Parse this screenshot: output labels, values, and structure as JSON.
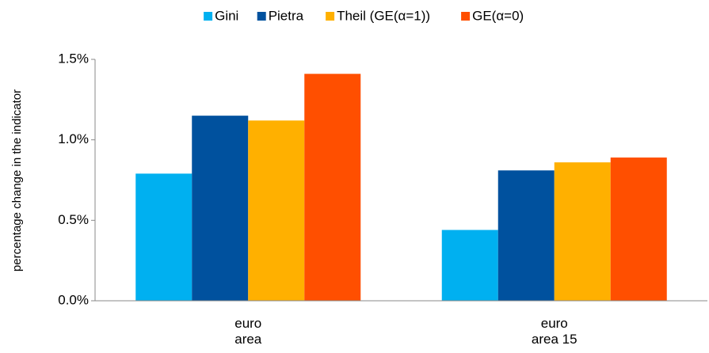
{
  "chart_data": {
    "type": "bar",
    "y_label": "percentage change in the indicator",
    "categories": [
      "euro area",
      "euro area 15"
    ],
    "series": [
      {
        "name": "Gini",
        "color": "#00b0f0",
        "values": [
          0.79,
          0.44
        ]
      },
      {
        "name": "Pietra",
        "color": "#00519e",
        "values": [
          1.15,
          0.81
        ]
      },
      {
        "name": "Theil (GE(α=1))",
        "color": "#ffb000",
        "values": [
          1.12,
          0.86
        ]
      },
      {
        "name": "GE(α=0)",
        "color": "#ff4f00",
        "values": [
          1.41,
          0.89
        ]
      }
    ],
    "ylim": [
      0,
      1.5
    ],
    "yticks": [
      {
        "value": 0,
        "label": "0.0%"
      },
      {
        "value": 0.5,
        "label": "0.5%"
      },
      {
        "value": 1,
        "label": "1.0%"
      },
      {
        "value": 1.5,
        "label": "1.5%"
      }
    ],
    "grid": false,
    "legend": "top"
  }
}
